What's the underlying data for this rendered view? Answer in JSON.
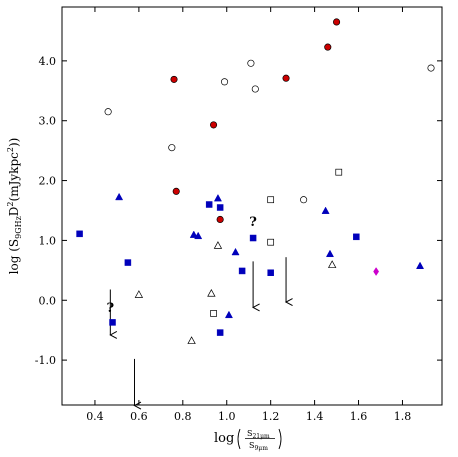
{
  "chart_data": {
    "type": "scatter",
    "xlim": [
      0.25,
      1.98
    ],
    "ylim": [
      -1.75,
      4.9
    ],
    "xticks": [
      "0.4",
      "0.6",
      "0.8",
      "1.0",
      "1.2",
      "1.4",
      "1.6",
      "1.8"
    ],
    "yticks": [
      "-1.0",
      "0.0",
      "1.0",
      "2.0",
      "3.0",
      "4.0"
    ],
    "xlabel": "log (S21μm / S9μm)",
    "ylabel": "log (S9GHz D2(mJykpc2))",
    "grid": false,
    "colors": {
      "red": "#cc0000",
      "blue": "#0000bb",
      "magenta": "#cc00cc",
      "black": "#000000"
    },
    "series": [
      {
        "marker": "filled-circle",
        "color": "red",
        "points": [
          [
            0.76,
            3.69
          ],
          [
            0.94,
            2.93
          ],
          [
            0.77,
            1.82
          ],
          [
            0.97,
            1.35
          ],
          [
            1.27,
            3.71
          ],
          [
            1.46,
            4.23
          ],
          [
            1.5,
            4.65
          ]
        ]
      },
      {
        "marker": "open-circle",
        "color": "black",
        "points": [
          [
            0.46,
            3.15
          ],
          [
            0.75,
            2.55
          ],
          [
            0.99,
            3.65
          ],
          [
            1.11,
            3.96
          ],
          [
            1.13,
            3.53
          ],
          [
            1.35,
            1.68
          ],
          [
            1.93,
            3.88
          ]
        ]
      },
      {
        "marker": "filled-square",
        "color": "blue",
        "points": [
          [
            0.33,
            1.11
          ],
          [
            0.55,
            0.63
          ],
          [
            0.48,
            -0.37
          ],
          [
            0.92,
            1.6
          ],
          [
            0.97,
            1.55
          ],
          [
            1.12,
            1.04
          ],
          [
            1.07,
            0.49
          ],
          [
            1.2,
            0.46
          ],
          [
            1.59,
            1.06
          ],
          [
            0.97,
            -0.54
          ]
        ]
      },
      {
        "marker": "open-square",
        "color": "black",
        "points": [
          [
            1.2,
            1.68
          ],
          [
            1.51,
            2.14
          ],
          [
            1.2,
            0.97
          ],
          [
            0.94,
            -0.22
          ]
        ]
      },
      {
        "marker": "filled-triangle",
        "color": "blue",
        "points": [
          [
            0.51,
            1.72
          ],
          [
            0.85,
            1.09
          ],
          [
            0.87,
            1.07
          ],
          [
            0.96,
            1.7
          ],
          [
            1.04,
            0.8
          ],
          [
            1.01,
            -0.25
          ],
          [
            1.45,
            1.49
          ],
          [
            1.47,
            0.77
          ],
          [
            1.88,
            0.57
          ]
        ]
      },
      {
        "marker": "open-triangle",
        "color": "black",
        "points": [
          [
            0.6,
            0.09
          ],
          [
            0.96,
            0.91
          ],
          [
            0.93,
            0.11
          ],
          [
            0.84,
            -0.68
          ],
          [
            1.48,
            0.59
          ]
        ]
      },
      {
        "marker": "diamond",
        "color": "magenta",
        "points": [
          [
            1.68,
            0.48
          ]
        ]
      }
    ],
    "arrows": [
      {
        "x": 0.47,
        "y_from": 0.18,
        "y_to": -0.58
      },
      {
        "x": 0.58,
        "y_from": -0.98,
        "y_to": -1.76
      },
      {
        "x": 1.12,
        "y_from": 0.65,
        "y_to": -0.12
      },
      {
        "x": 1.27,
        "y_from": 0.72,
        "y_to": -0.03
      }
    ],
    "annotations": [
      {
        "text": "?",
        "x": 0.47,
        "y": -0.2
      },
      {
        "text": "?",
        "x": 1.12,
        "y": 1.24
      }
    ]
  }
}
